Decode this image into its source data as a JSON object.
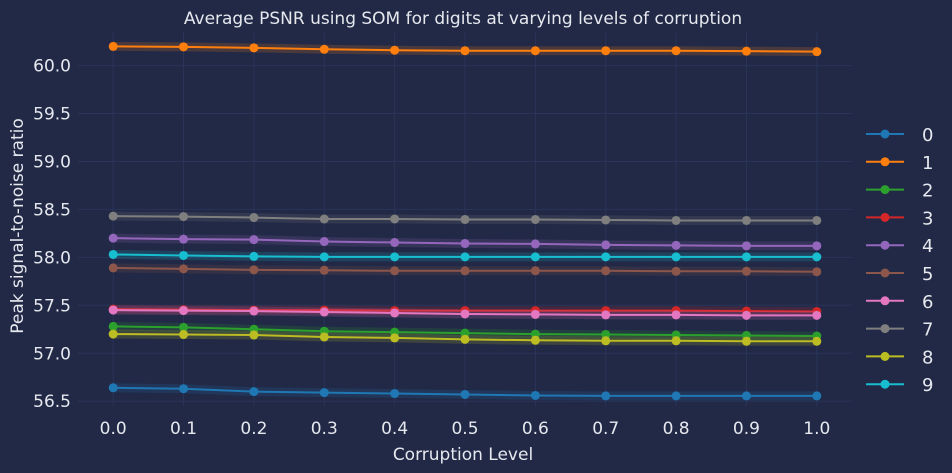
{
  "chart_data": {
    "type": "line",
    "title": "Average PSNR using SOM for digits at varying levels of corruption",
    "xlabel": "Corruption Level",
    "ylabel": "Peak signal-to-noise ratio",
    "xlim": [
      -0.05,
      1.05
    ],
    "ylim": [
      56.45,
      60.35
    ],
    "xticks": [
      "0.0",
      "0.1",
      "0.2",
      "0.3",
      "0.4",
      "0.5",
      "0.6",
      "0.7",
      "0.8",
      "0.9",
      "1.0"
    ],
    "yticks": [
      "56.5",
      "57.0",
      "57.5",
      "58.0",
      "58.5",
      "59.0",
      "59.5",
      "60.0"
    ],
    "grid": true,
    "legend_position": "right",
    "x": [
      0.0,
      0.1,
      0.2,
      0.3,
      0.4,
      0.5,
      0.6,
      0.7,
      0.8,
      0.9,
      1.0
    ],
    "series": [
      {
        "name": "0",
        "color": "#1f77b4",
        "values": [
          56.64,
          56.63,
          56.6,
          56.59,
          56.58,
          56.57,
          56.56,
          56.555,
          56.555,
          56.555,
          56.555
        ]
      },
      {
        "name": "1",
        "color": "#ff7f0e",
        "values": [
          60.2,
          60.195,
          60.185,
          60.17,
          60.16,
          60.155,
          60.155,
          60.155,
          60.155,
          60.15,
          60.145
        ]
      },
      {
        "name": "2",
        "color": "#2ca02c",
        "values": [
          57.28,
          57.27,
          57.25,
          57.23,
          57.22,
          57.21,
          57.2,
          57.195,
          57.19,
          57.185,
          57.18
        ]
      },
      {
        "name": "3",
        "color": "#d62728",
        "values": [
          57.46,
          57.455,
          57.45,
          57.45,
          57.445,
          57.445,
          57.445,
          57.445,
          57.445,
          57.44,
          57.435
        ]
      },
      {
        "name": "4",
        "color": "#9467bd",
        "values": [
          58.2,
          58.19,
          58.185,
          58.165,
          58.155,
          58.145,
          58.14,
          58.13,
          58.125,
          58.12,
          58.12
        ]
      },
      {
        "name": "5",
        "color": "#8c564b",
        "values": [
          57.89,
          57.88,
          57.87,
          57.865,
          57.86,
          57.86,
          57.86,
          57.86,
          57.855,
          57.855,
          57.85
        ]
      },
      {
        "name": "6",
        "color": "#e377c2",
        "values": [
          57.45,
          57.445,
          57.44,
          57.43,
          57.42,
          57.41,
          57.405,
          57.4,
          57.4,
          57.395,
          57.395
        ]
      },
      {
        "name": "7",
        "color": "#7f7f7f",
        "values": [
          58.43,
          58.425,
          58.415,
          58.4,
          58.4,
          58.395,
          58.395,
          58.39,
          58.385,
          58.385,
          58.385
        ]
      },
      {
        "name": "8",
        "color": "#bcbd22",
        "values": [
          57.2,
          57.195,
          57.19,
          57.17,
          57.16,
          57.145,
          57.135,
          57.13,
          57.13,
          57.125,
          57.125
        ]
      },
      {
        "name": "9",
        "color": "#17becf",
        "values": [
          58.03,
          58.02,
          58.01,
          58.005,
          58.005,
          58.005,
          58.005,
          58.005,
          58.005,
          58.005,
          58.005
        ]
      }
    ]
  }
}
